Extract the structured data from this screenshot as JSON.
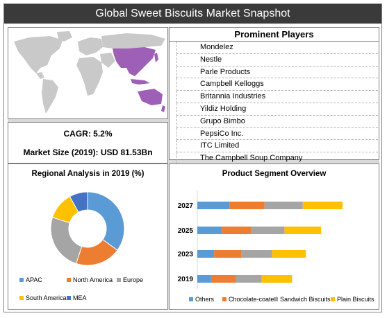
{
  "title": "Global Sweet Biscuits Market Snapshot",
  "kpis": {
    "cagr": "CAGR: 5.2%",
    "market_size": "Market Size (2019): USD 81.53Bn"
  },
  "players": {
    "title": "Prominent Players",
    "items": [
      "Mondelez",
      "Nestle",
      "Parle Products",
      "Campbell Kelloggs",
      "Britannia Industries",
      "Yildiz Holding",
      "Grupo Bimbo",
      "PepsiCo Inc.",
      "ITC Limited",
      "The Campbell Soup Company"
    ]
  },
  "map": {
    "highlight_color": "#9e5fb7",
    "base_color": "#c9c9c9",
    "highlight_region": "APAC"
  },
  "chart_data": [
    {
      "type": "pie",
      "variant": "donut",
      "title": "Regional Analysis in 2019 (%)",
      "categories": [
        "APAC",
        "North America",
        "Europe",
        "South America",
        "MEA"
      ],
      "values": [
        35,
        20,
        25,
        12,
        8
      ],
      "colors": [
        "#5b9bd5",
        "#ed7d31",
        "#a5a5a5",
        "#ffc000",
        "#4472c4"
      ],
      "legend": "bottom"
    },
    {
      "type": "bar",
      "orientation": "horizontal",
      "stacked": true,
      "title": "Product Segment Overview",
      "categories": [
        "2027",
        "2025",
        "2023",
        "2019"
      ],
      "series": [
        {
          "name": "Others",
          "values": [
            21,
            16,
            11,
            9
          ],
          "color": "#5b9bd5"
        },
        {
          "name": "Chocolate-coated",
          "values": [
            23,
            19,
            18,
            16
          ],
          "color": "#ed7d31"
        },
        {
          "name": "Sandwich Biscuits",
          "values": [
            25,
            22,
            20,
            17
          ],
          "color": "#a5a5a5"
        },
        {
          "name": "Plain Biscuits",
          "values": [
            26,
            24,
            22,
            20
          ],
          "color": "#ffc000"
        }
      ],
      "legend": "bottom"
    }
  ]
}
